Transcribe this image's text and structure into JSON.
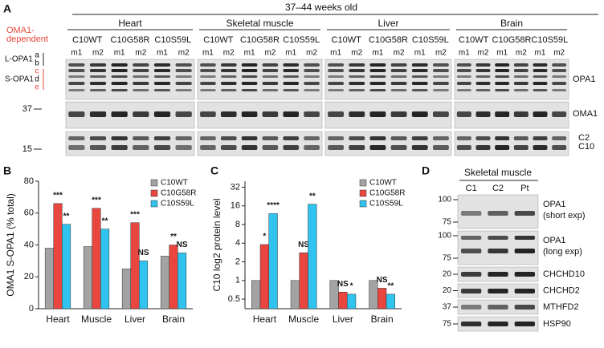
{
  "figure_a": {
    "label": "A",
    "title": "37–44 weeks old",
    "tissues": [
      "Heart",
      "Skeletal muscle",
      "Liver",
      "Brain"
    ],
    "genotypes": [
      "C10WT",
      "C10G58R",
      "C10S59L"
    ],
    "mice": [
      "m1",
      "m2"
    ],
    "dependent_label": [
      "OMA1-",
      "dependent"
    ],
    "isoforms": [
      "L-OPA1",
      "S-OPA1"
    ],
    "band_letters": [
      "a",
      "b",
      "c",
      "d",
      "e"
    ],
    "markers": [
      "37",
      "15"
    ],
    "row_labels": [
      "OPA1",
      "OMA1",
      "C2",
      "C10"
    ]
  },
  "chart_data": [
    {
      "type": "bar",
      "label": "B",
      "y_label": "OMA1 S-OPA1 (% total)",
      "categories": [
        "Heart",
        "Muscle",
        "Liver",
        "Brain"
      ],
      "series": [
        {
          "name": "C10WT",
          "color": "#a3a3a3",
          "values": [
            38,
            39,
            25,
            33
          ],
          "annotations": [
            null,
            null,
            null,
            null
          ]
        },
        {
          "name": "C10G58R",
          "color": "#e8463e",
          "values": [
            66,
            63,
            54,
            40
          ],
          "annotations": [
            "***",
            "***",
            "***",
            "**"
          ]
        },
        {
          "name": "C10S59L",
          "color": "#2fc3ee",
          "values": [
            53,
            50,
            30,
            35
          ],
          "annotations": [
            "**",
            "**",
            "NS",
            "NS"
          ]
        }
      ],
      "ylim": [
        0,
        80
      ],
      "yticks": [
        0,
        20,
        40,
        60,
        80
      ],
      "legend": "upper right"
    },
    {
      "type": "bar",
      "label": "C",
      "y_label": "C10 log2 protein level",
      "log_scale": true,
      "categories": [
        "Heart",
        "Muscle",
        "Liver",
        "Brain"
      ],
      "series": [
        {
          "name": "C10WT",
          "color": "#a3a3a3",
          "values": [
            1,
            1,
            1,
            1
          ],
          "annotations": [
            null,
            null,
            null,
            null
          ]
        },
        {
          "name": "C10G58R",
          "color": "#e8463e",
          "values": [
            3.8,
            2.8,
            0.65,
            0.75
          ],
          "annotations": [
            "*",
            "NS",
            "NS",
            "NS"
          ]
        },
        {
          "name": "C10S59L",
          "color": "#2fc3ee",
          "values": [
            12,
            17,
            0.6,
            0.6
          ],
          "annotations": [
            "****",
            "**",
            "*",
            "**"
          ]
        }
      ],
      "ylim": [
        0.35,
        40
      ],
      "yticks": [
        0.5,
        1,
        2,
        4,
        8,
        16,
        32
      ],
      "legend": "upper right"
    }
  ],
  "figure_d": {
    "label": "D",
    "title": "Skeletal muscle",
    "lanes": [
      "C1",
      "C2",
      "Pt"
    ],
    "rows": [
      {
        "name": "OPA1",
        "note": "(short exp)",
        "markers": [
          "100",
          "75"
        ]
      },
      {
        "name": "OPA1",
        "note": "(long exp)",
        "markers": [
          "100",
          "75"
        ]
      },
      {
        "name": "CHCHD10",
        "markers": [
          "20"
        ]
      },
      {
        "name": "CHCHD2",
        "markers": [
          "20"
        ]
      },
      {
        "name": "MTHFD2",
        "markers": [
          "37"
        ]
      },
      {
        "name": "HSP90",
        "markers": [
          "75"
        ]
      }
    ]
  }
}
